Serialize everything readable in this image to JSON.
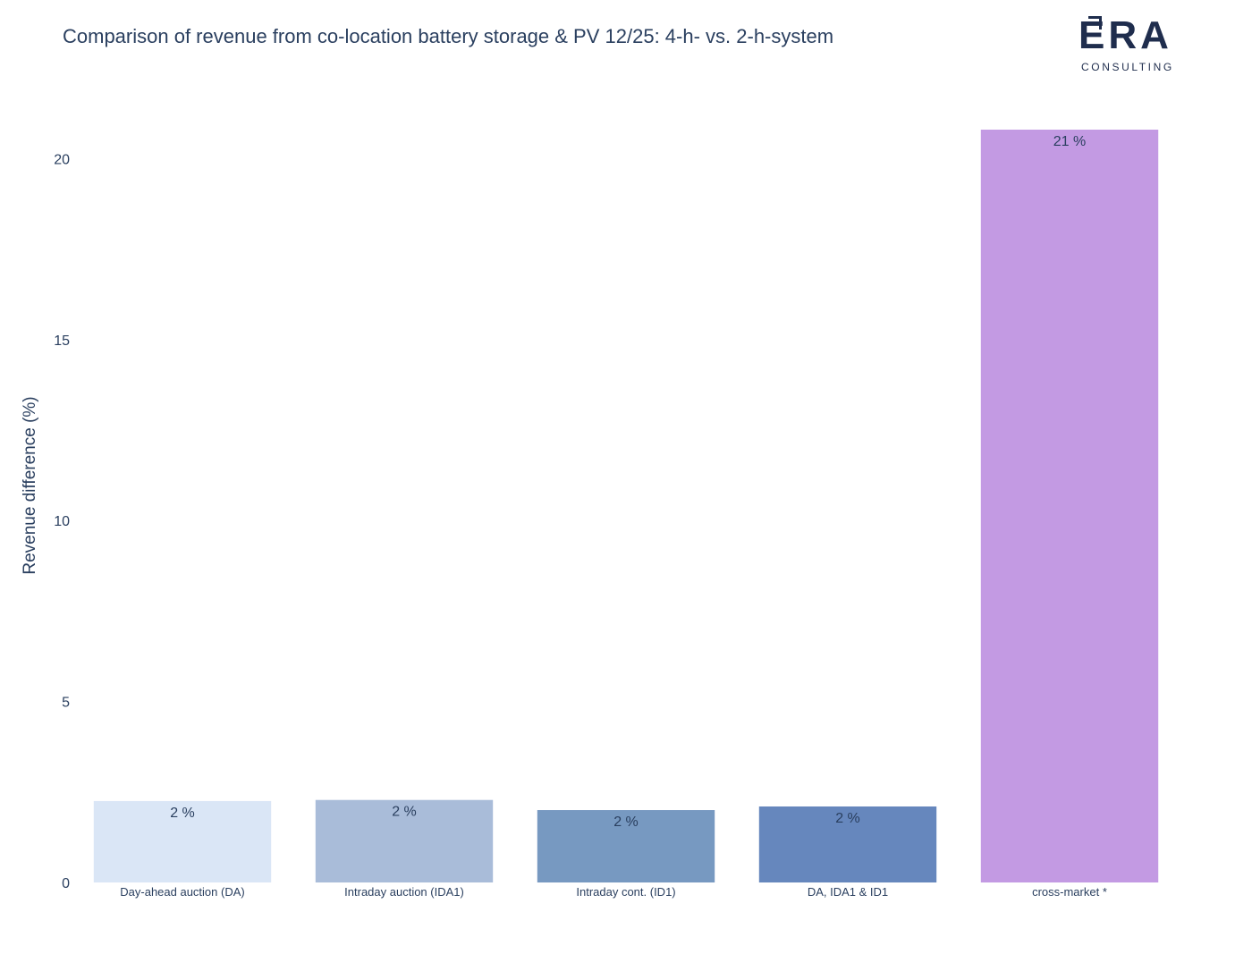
{
  "logo": {
    "wordmark": "ERA",
    "subtitle": "CONSULTING"
  },
  "chart_data": {
    "type": "bar",
    "title": "Comparison of revenue from co-location battery storage & PV 12/25: 4-h- vs. 2-h-system",
    "xlabel": "",
    "ylabel": "Revenue difference (%)",
    "ylim": [
      0,
      20.8
    ],
    "yticks": [
      0,
      5,
      10,
      15,
      20
    ],
    "grid": false,
    "categories": [
      "Day-ahead auction (DA)",
      "Intraday auction (IDA1)",
      "Intraday cont. (ID1)",
      "DA, IDA1 & ID1",
      "cross-market *"
    ],
    "values": [
      2.25,
      2.28,
      2.0,
      2.1,
      20.8
    ],
    "data_labels": [
      "2 %",
      "2 %",
      "2 %",
      "2 %",
      "21 %"
    ],
    "colors": [
      "#dae6f6",
      "#a9bcd9",
      "#7799c1",
      "#6687bd",
      "#c39ae3"
    ]
  }
}
